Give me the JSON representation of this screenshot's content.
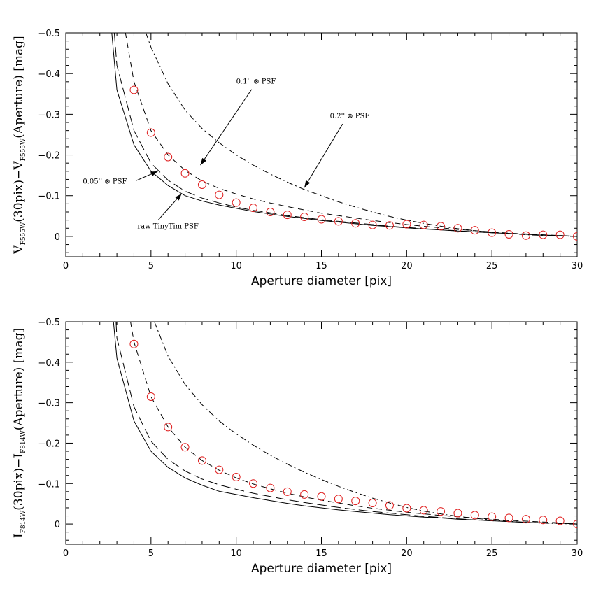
{
  "chart_data": [
    {
      "type": "line",
      "xlabel": "Aperture diameter [pix]",
      "ylabel": {
        "main": "V",
        "sub1": "F555W",
        "mid": "(30pix)−V",
        "sub2": "F555W",
        "tail": "(Aperture) [mag]"
      },
      "xlim": [
        0,
        30
      ],
      "ylim": [
        0.05,
        -0.5
      ],
      "xticks": [
        0,
        5,
        10,
        15,
        20,
        25,
        30
      ],
      "yticks": [
        -0.5,
        -0.4,
        -0.3,
        -0.2,
        -0.1,
        0
      ],
      "ytick_labels": [
        "−0.5",
        "−0.4",
        "−0.3",
        "−0.2",
        "−0.1",
        "0"
      ],
      "grid": false,
      "series": [
        {
          "name": "raw TinyTim PSF",
          "style": "solid",
          "x": [
            2.7,
            3,
            4,
            5,
            6,
            7,
            8,
            9,
            10,
            11,
            12,
            13,
            14,
            15,
            16,
            17,
            18,
            19,
            20,
            21,
            22,
            23,
            24,
            25,
            26,
            27,
            28,
            29,
            30
          ],
          "y": [
            -0.5,
            -0.36,
            -0.225,
            -0.16,
            -0.125,
            -0.1,
            -0.087,
            -0.077,
            -0.069,
            -0.061,
            -0.055,
            -0.049,
            -0.044,
            -0.039,
            -0.035,
            -0.031,
            -0.027,
            -0.024,
            -0.021,
            -0.018,
            -0.016,
            -0.013,
            -0.011,
            -0.009,
            -0.007,
            -0.005,
            -0.003,
            -0.002,
            0
          ]
        },
        {
          "name": "0.05'' ⊗ PSF",
          "style": "longdash",
          "x": [
            2.85,
            3,
            4,
            5,
            6,
            7,
            8,
            9,
            10,
            11,
            12,
            13,
            14,
            15,
            16,
            17,
            18,
            19,
            20,
            21,
            22,
            23,
            24,
            25,
            26,
            27,
            28,
            29,
            30
          ],
          "y": [
            -0.5,
            -0.42,
            -0.26,
            -0.18,
            -0.138,
            -0.111,
            -0.094,
            -0.082,
            -0.072,
            -0.064,
            -0.058,
            -0.051,
            -0.046,
            -0.041,
            -0.037,
            -0.033,
            -0.029,
            -0.025,
            -0.022,
            -0.019,
            -0.016,
            -0.014,
            -0.011,
            -0.009,
            -0.007,
            -0.005,
            -0.003,
            -0.002,
            0
          ]
        },
        {
          "name": "0.1'' ⊗ PSF",
          "style": "dash",
          "x": [
            3.5,
            4,
            5,
            6,
            7,
            8,
            9,
            10,
            11,
            12,
            13,
            14,
            15,
            16,
            17,
            18,
            19,
            20,
            21,
            22,
            23,
            24,
            25,
            26,
            27,
            28,
            29,
            30
          ],
          "y": [
            -0.5,
            -0.38,
            -0.26,
            -0.2,
            -0.162,
            -0.136,
            -0.118,
            -0.104,
            -0.092,
            -0.082,
            -0.073,
            -0.065,
            -0.057,
            -0.051,
            -0.045,
            -0.039,
            -0.034,
            -0.029,
            -0.025,
            -0.021,
            -0.017,
            -0.014,
            -0.011,
            -0.008,
            -0.006,
            -0.004,
            -0.002,
            0
          ]
        },
        {
          "name": "0.2'' ⊗ PSF",
          "style": "dashdot",
          "x": [
            4.7,
            5,
            6,
            7,
            8,
            9,
            10,
            11,
            12,
            13,
            14,
            15,
            16,
            17,
            18,
            19,
            20,
            21,
            22,
            23,
            24,
            25,
            26,
            27,
            28,
            29,
            30
          ],
          "y": [
            -0.5,
            -0.465,
            -0.375,
            -0.31,
            -0.265,
            -0.23,
            -0.2,
            -0.175,
            -0.153,
            -0.133,
            -0.115,
            -0.1,
            -0.085,
            -0.072,
            -0.06,
            -0.049,
            -0.04,
            -0.032,
            -0.025,
            -0.019,
            -0.014,
            -0.01,
            -0.007,
            -0.004,
            -0.002,
            -0.001,
            0
          ]
        },
        {
          "name": "data",
          "style": "circles",
          "x": [
            4,
            5,
            6,
            7,
            8,
            9,
            10,
            11,
            12,
            13,
            14,
            15,
            16,
            17,
            18,
            19,
            20,
            21,
            22,
            23,
            24,
            25,
            26,
            27,
            28,
            29,
            30
          ],
          "y": [
            -0.36,
            -0.255,
            -0.195,
            -0.155,
            -0.127,
            -0.102,
            -0.083,
            -0.07,
            -0.06,
            -0.053,
            -0.048,
            -0.042,
            -0.037,
            -0.032,
            -0.028,
            -0.027,
            -0.03,
            -0.028,
            -0.025,
            -0.02,
            -0.015,
            -0.009,
            -0.005,
            -0.002,
            -0.004,
            -0.004,
            0
          ]
        }
      ],
      "annotations": [
        {
          "text": "0.1'' ⊗ PSF",
          "x": 10.0,
          "y": -0.375,
          "arrow_to": [
            7.9,
            -0.175
          ]
        },
        {
          "text": "0.2'' ⊗ PSF",
          "x": 15.5,
          "y": -0.29,
          "arrow_to": [
            14.0,
            -0.12
          ]
        },
        {
          "text": "0.05'' ⊗ PSF",
          "x": 1.0,
          "y": -0.13,
          "arrow_to": [
            5.4,
            -0.16
          ]
        },
        {
          "text": "raw TinyTim PSF",
          "x": 4.2,
          "y": -0.02,
          "arrow_to": [
            6.8,
            -0.105
          ]
        }
      ]
    },
    {
      "type": "line",
      "xlabel": "Aperture diameter [pix]",
      "ylabel": {
        "main": "I",
        "sub1": "F814W",
        "mid": "(30pix)−I",
        "sub2": "F814W",
        "tail": "(Aperture) [mag]"
      },
      "xlim": [
        0,
        30
      ],
      "ylim": [
        0.05,
        -0.5
      ],
      "xticks": [
        0,
        5,
        10,
        15,
        20,
        25,
        30
      ],
      "yticks": [
        -0.5,
        -0.4,
        -0.3,
        -0.2,
        -0.1,
        0
      ],
      "ytick_labels": [
        "−0.5",
        "−0.4",
        "−0.3",
        "−0.2",
        "−0.1",
        "0"
      ],
      "grid": false,
      "series": [
        {
          "style": "solid",
          "x": [
            2.8,
            3,
            4,
            5,
            6,
            7,
            8,
            9,
            10,
            11,
            12,
            13,
            14,
            15,
            16,
            17,
            18,
            19,
            20,
            21,
            22,
            23,
            24,
            25,
            26,
            27,
            28,
            29,
            30
          ],
          "y": [
            -0.5,
            -0.41,
            -0.255,
            -0.18,
            -0.14,
            -0.114,
            -0.096,
            -0.081,
            -0.073,
            -0.065,
            -0.058,
            -0.051,
            -0.045,
            -0.04,
            -0.035,
            -0.031,
            -0.027,
            -0.023,
            -0.02,
            -0.017,
            -0.015,
            -0.012,
            -0.01,
            -0.008,
            -0.006,
            -0.004,
            -0.003,
            -0.002,
            0
          ]
        },
        {
          "style": "longdash",
          "x": [
            2.95,
            3,
            4,
            5,
            6,
            7,
            8,
            9,
            10,
            11,
            12,
            13,
            14,
            15,
            16,
            17,
            18,
            19,
            20,
            21,
            22,
            23,
            24,
            25,
            26,
            27,
            28,
            29,
            30
          ],
          "y": [
            -0.5,
            -0.46,
            -0.29,
            -0.205,
            -0.16,
            -0.131,
            -0.111,
            -0.097,
            -0.086,
            -0.076,
            -0.068,
            -0.06,
            -0.053,
            -0.047,
            -0.041,
            -0.036,
            -0.031,
            -0.027,
            -0.023,
            -0.019,
            -0.016,
            -0.013,
            -0.01,
            -0.008,
            -0.006,
            -0.004,
            -0.003,
            -0.002,
            0
          ]
        },
        {
          "style": "dash",
          "x": [
            3.8,
            4,
            5,
            6,
            7,
            8,
            9,
            10,
            11,
            12,
            13,
            14,
            15,
            16,
            17,
            18,
            19,
            20,
            21,
            22,
            23,
            24,
            25,
            26,
            27,
            28,
            29,
            30
          ],
          "y": [
            -0.5,
            -0.45,
            -0.315,
            -0.24,
            -0.19,
            -0.157,
            -0.133,
            -0.114,
            -0.099,
            -0.087,
            -0.076,
            -0.067,
            -0.059,
            -0.052,
            -0.045,
            -0.039,
            -0.034,
            -0.029,
            -0.025,
            -0.021,
            -0.018,
            -0.015,
            -0.012,
            -0.009,
            -0.007,
            -0.005,
            -0.003,
            0
          ]
        },
        {
          "style": "dashdot",
          "x": [
            5.2,
            6,
            7,
            8,
            9,
            10,
            11,
            12,
            13,
            14,
            15,
            16,
            17,
            18,
            19,
            20,
            21,
            22,
            23,
            24,
            25,
            26,
            27,
            28,
            29,
            30
          ],
          "y": [
            -0.5,
            -0.415,
            -0.345,
            -0.295,
            -0.255,
            -0.223,
            -0.195,
            -0.17,
            -0.148,
            -0.128,
            -0.11,
            -0.093,
            -0.078,
            -0.064,
            -0.052,
            -0.041,
            -0.032,
            -0.025,
            -0.019,
            -0.014,
            -0.01,
            -0.007,
            -0.004,
            -0.002,
            -0.001,
            0
          ]
        },
        {
          "style": "circles",
          "x": [
            4,
            5,
            6,
            7,
            8,
            9,
            10,
            11,
            12,
            13,
            14,
            15,
            16,
            17,
            18,
            19,
            20,
            21,
            22,
            23,
            24,
            25,
            26,
            27,
            28,
            29,
            30
          ],
          "y": [
            -0.445,
            -0.315,
            -0.24,
            -0.19,
            -0.157,
            -0.134,
            -0.116,
            -0.1,
            -0.089,
            -0.08,
            -0.073,
            -0.068,
            -0.062,
            -0.057,
            -0.052,
            -0.046,
            -0.039,
            -0.034,
            -0.031,
            -0.027,
            -0.022,
            -0.018,
            -0.015,
            -0.012,
            -0.01,
            -0.008,
            0
          ]
        }
      ],
      "annotations": []
    }
  ],
  "colors": {
    "axis": "#000000",
    "line": "#000000",
    "marker": "#e02020"
  }
}
